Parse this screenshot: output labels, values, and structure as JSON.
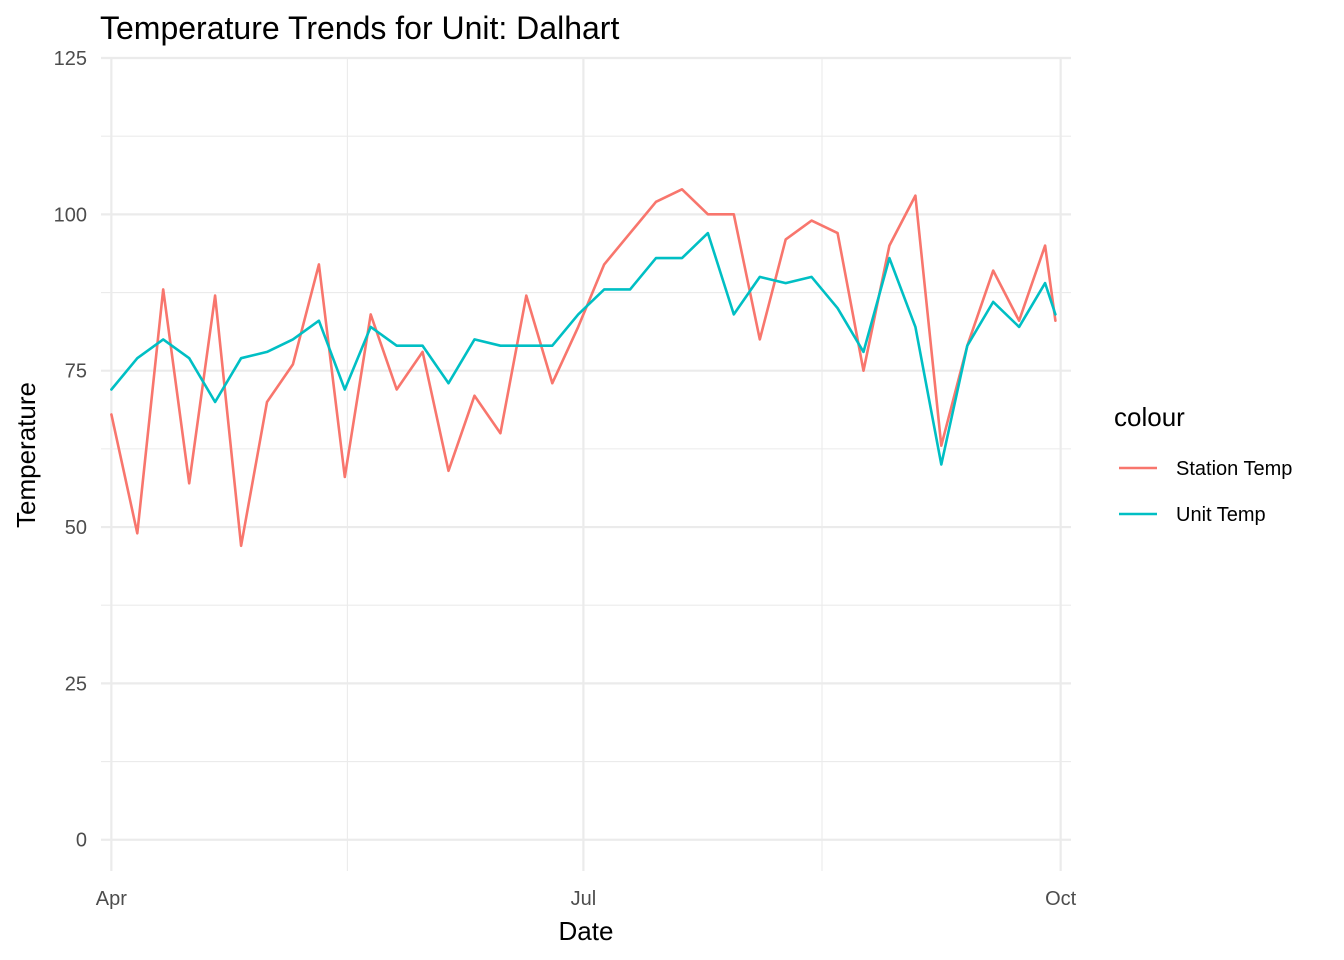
{
  "chart_data": {
    "type": "line",
    "title": "Temperature Trends for Unit: Dalhart",
    "xlabel": "Date",
    "ylabel": "Temperature",
    "x_range": [
      "2023-03-30",
      "2023-10-03"
    ],
    "ylim": [
      -5,
      125
    ],
    "y_ticks": [
      0,
      25,
      50,
      75,
      100,
      125
    ],
    "x_ticks": [
      {
        "date": "2023-04-01",
        "label": "Apr"
      },
      {
        "date": "2023-07-01",
        "label": "Jul"
      },
      {
        "date": "2023-10-01",
        "label": "Oct"
      }
    ],
    "grid": true,
    "legend": {
      "title": "colour",
      "position": "right"
    },
    "series": [
      {
        "name": "Station Temp",
        "color": "#F8766D",
        "x": [
          "2023-04-01",
          "2023-04-06",
          "2023-04-11",
          "2023-04-16",
          "2023-04-21",
          "2023-04-26",
          "2023-05-01",
          "2023-05-06",
          "2023-05-11",
          "2023-05-16",
          "2023-05-21",
          "2023-05-26",
          "2023-05-31",
          "2023-06-05",
          "2023-06-10",
          "2023-06-15",
          "2023-06-20",
          "2023-06-25",
          "2023-06-30",
          "2023-07-05",
          "2023-07-10",
          "2023-07-15",
          "2023-07-20",
          "2023-07-25",
          "2023-07-30",
          "2023-08-04",
          "2023-08-09",
          "2023-08-14",
          "2023-08-19",
          "2023-08-24",
          "2023-08-29",
          "2023-09-03",
          "2023-09-08",
          "2023-09-13",
          "2023-09-18",
          "2023-09-23",
          "2023-09-28",
          "2023-09-30"
        ],
        "values": [
          68,
          49,
          88,
          57,
          87,
          47,
          70,
          76,
          92,
          58,
          84,
          72,
          78,
          59,
          71,
          65,
          87,
          73,
          82,
          92,
          97,
          102,
          104,
          100,
          100,
          80,
          96,
          99,
          97,
          75,
          95,
          103,
          63,
          79,
          91,
          83,
          95,
          83
        ]
      },
      {
        "name": "Unit Temp",
        "color": "#00BFC4",
        "x": [
          "2023-04-01",
          "2023-04-06",
          "2023-04-11",
          "2023-04-16",
          "2023-04-21",
          "2023-04-26",
          "2023-05-01",
          "2023-05-06",
          "2023-05-11",
          "2023-05-16",
          "2023-05-21",
          "2023-05-26",
          "2023-05-31",
          "2023-06-05",
          "2023-06-10",
          "2023-06-15",
          "2023-06-20",
          "2023-06-25",
          "2023-06-30",
          "2023-07-05",
          "2023-07-10",
          "2023-07-15",
          "2023-07-20",
          "2023-07-25",
          "2023-07-30",
          "2023-08-04",
          "2023-08-09",
          "2023-08-14",
          "2023-08-19",
          "2023-08-24",
          "2023-08-29",
          "2023-09-03",
          "2023-09-08",
          "2023-09-13",
          "2023-09-18",
          "2023-09-23",
          "2023-09-28",
          "2023-09-30"
        ],
        "values": [
          72,
          77,
          80,
          77,
          70,
          77,
          78,
          80,
          83,
          72,
          82,
          79,
          79,
          73,
          80,
          79,
          79,
          79,
          84,
          88,
          88,
          93,
          93,
          97,
          84,
          90,
          89,
          90,
          85,
          78,
          93,
          82,
          60,
          79,
          86,
          82,
          89,
          84
        ]
      }
    ]
  }
}
